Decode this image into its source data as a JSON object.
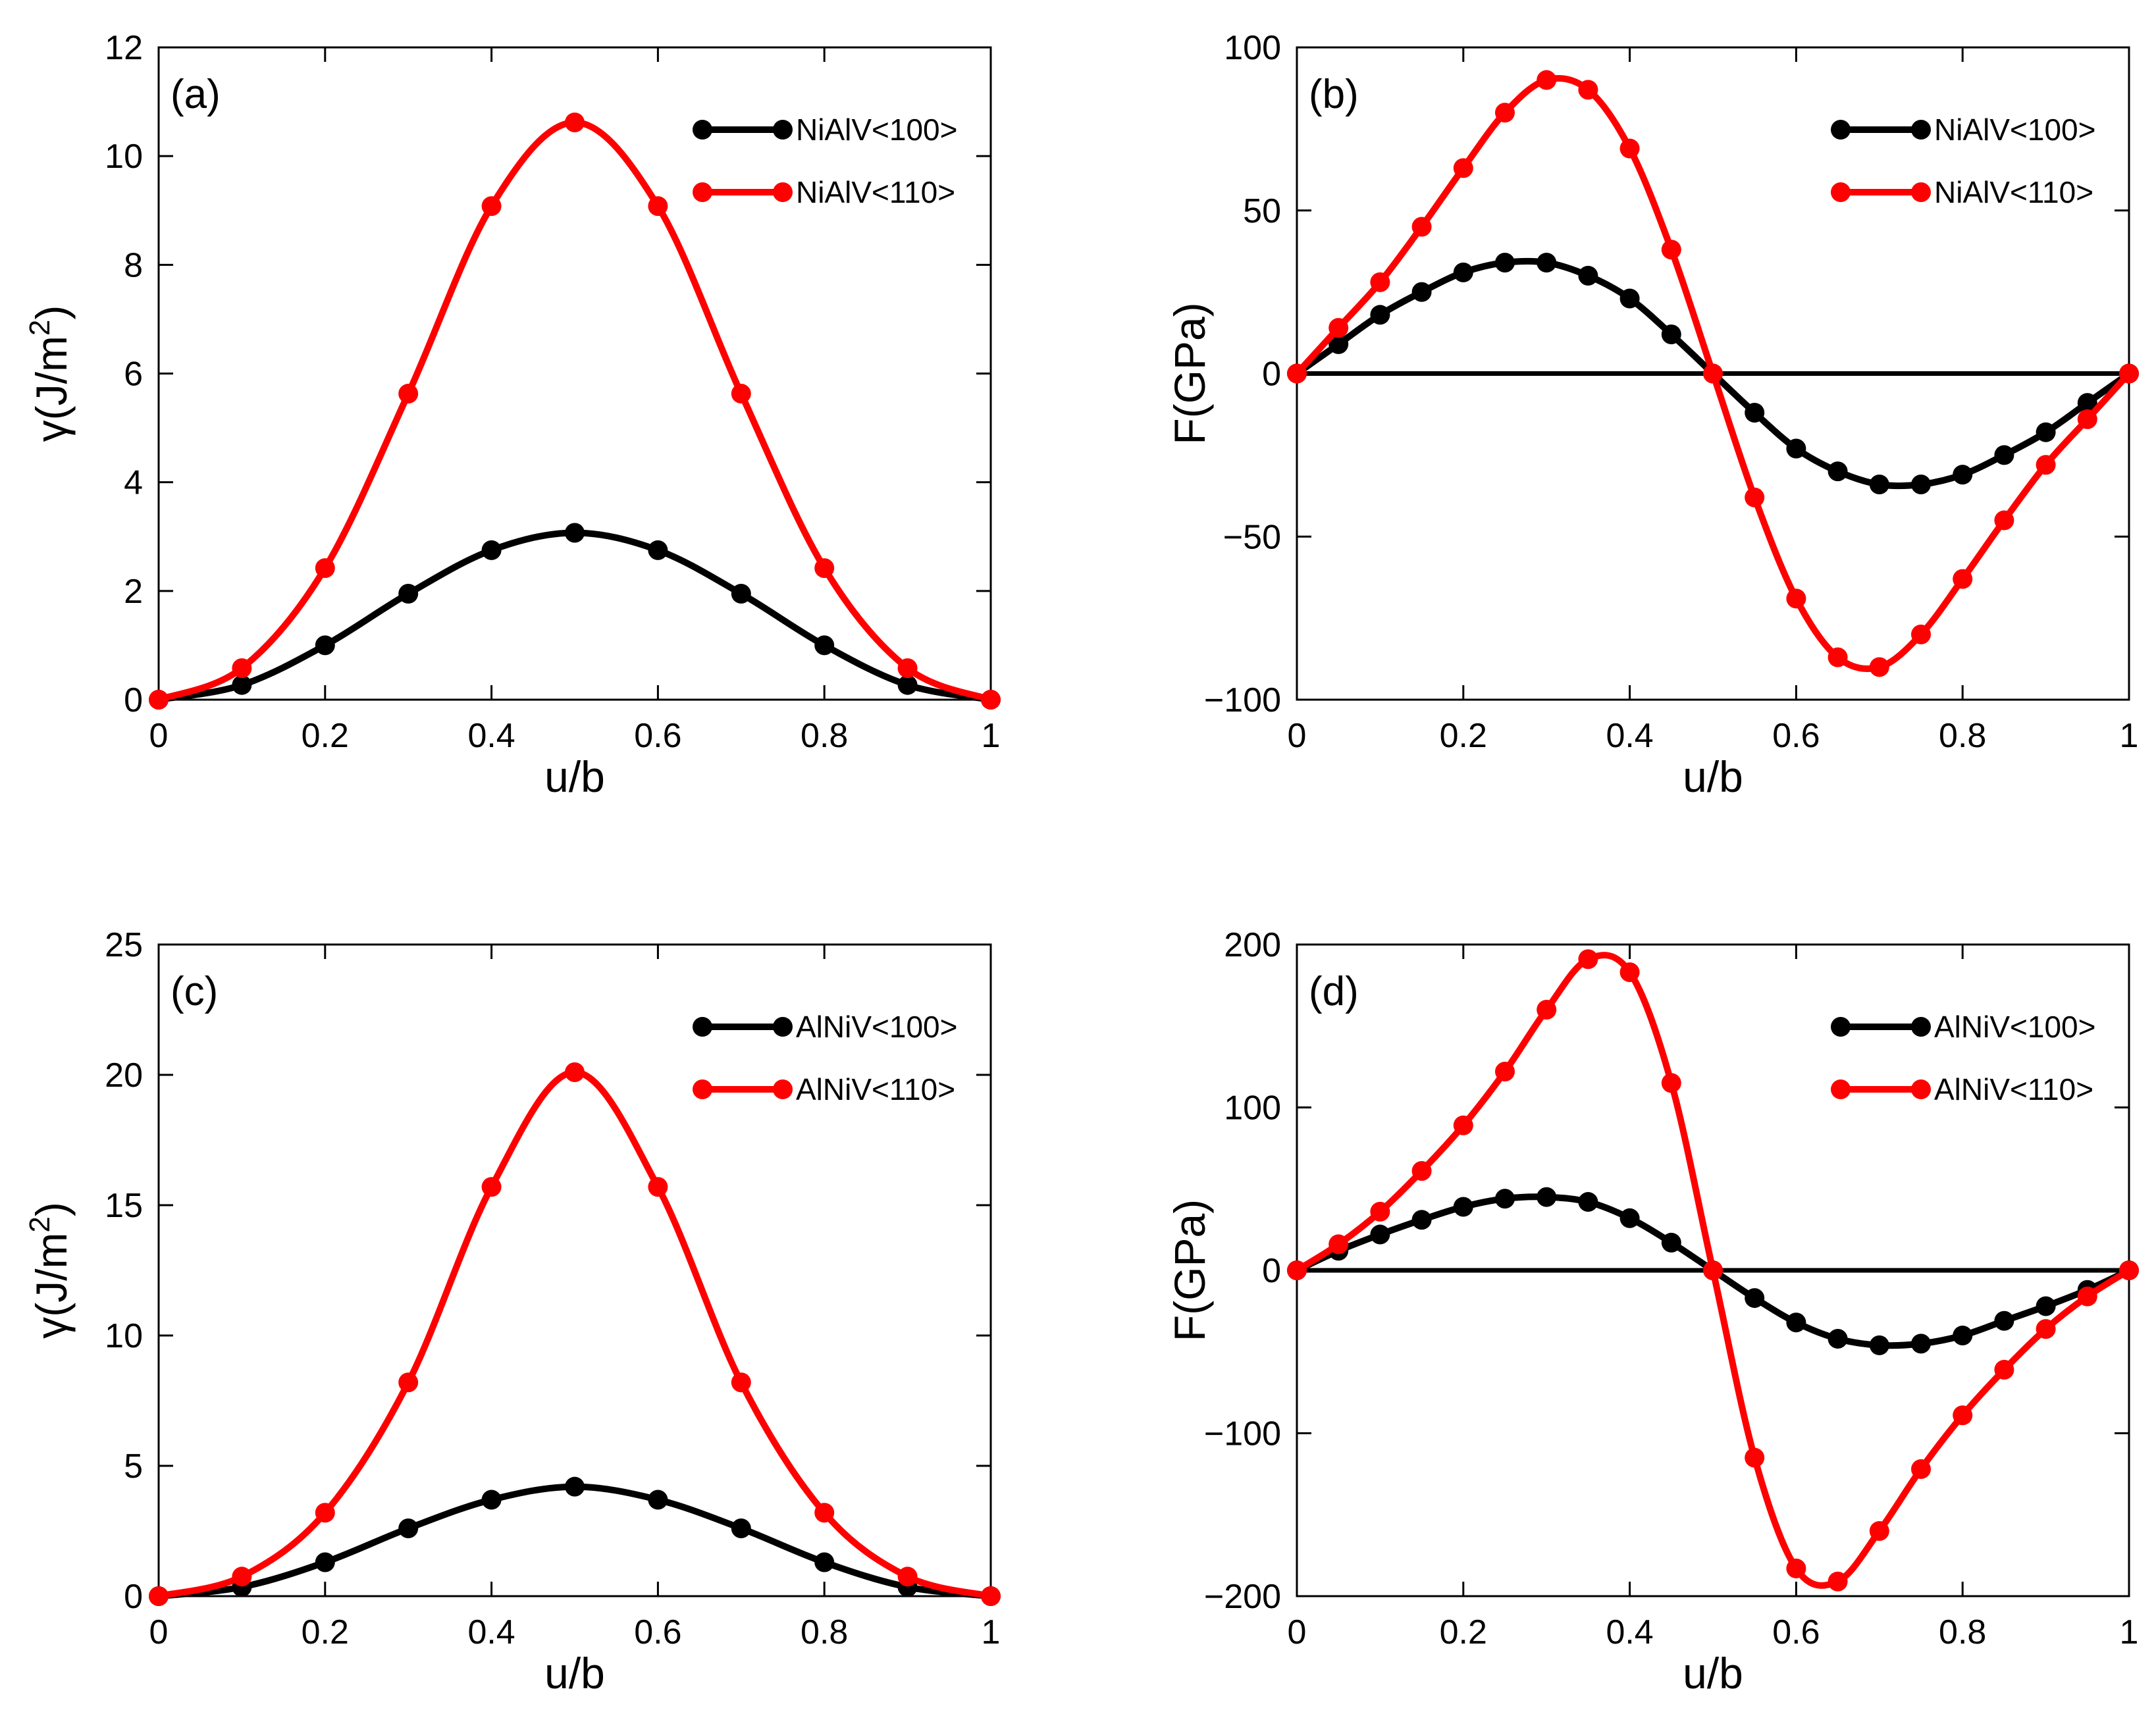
{
  "chart_data": [
    {
      "type": "line",
      "panel_label": "(a)",
      "xlabel": "u/b",
      "ylabel": "γ(J/m²)",
      "ylabel_parts": {
        "base": "γ(J/m",
        "sup": "2",
        "close": ")"
      },
      "xlim": [
        0,
        1
      ],
      "ylim": [
        0,
        12
      ],
      "xticks": [
        0,
        0.2,
        0.4,
        0.6,
        0.8,
        1
      ],
      "xtick_labels": [
        "0",
        "0.2",
        "0.4",
        "0.6",
        "0.8",
        "1"
      ],
      "yticks": [
        0,
        2,
        4,
        6,
        8,
        10,
        12
      ],
      "ytick_labels": [
        "0",
        "2",
        "4",
        "6",
        "8",
        "10",
        "12"
      ],
      "legend_position": "top-right",
      "series": [
        {
          "name": "NiAlV<100>",
          "color": "#000000",
          "x": [
            0,
            0.1,
            0.2,
            0.3,
            0.4,
            0.5,
            0.6,
            0.7,
            0.8,
            0.9,
            1
          ],
          "y": [
            0,
            0.27,
            1.0,
            1.95,
            2.75,
            3.07,
            2.75,
            1.95,
            1.0,
            0.27,
            0
          ]
        },
        {
          "name": "NiAlV<110>",
          "color": "#ff0000",
          "x": [
            0,
            0.1,
            0.2,
            0.3,
            0.4,
            0.5,
            0.6,
            0.7,
            0.8,
            0.9,
            1
          ],
          "y": [
            0,
            0.58,
            2.42,
            5.63,
            9.08,
            10.62,
            9.08,
            5.63,
            2.42,
            0.58,
            0
          ]
        }
      ]
    },
    {
      "type": "line",
      "panel_label": "(b)",
      "xlabel": "u/b",
      "ylabel": "F(GPa)",
      "xlim": [
        0,
        1
      ],
      "ylim": [
        -100,
        100
      ],
      "xticks": [
        0,
        0.2,
        0.4,
        0.6,
        0.8,
        1
      ],
      "xtick_labels": [
        "0",
        "0.2",
        "0.4",
        "0.6",
        "0.8",
        "1"
      ],
      "yticks": [
        -100,
        -50,
        0,
        50,
        100
      ],
      "ytick_labels": [
        "−100",
        "−50",
        "0",
        "50",
        "100"
      ],
      "legend_position": "top-right",
      "zero_line": true,
      "series": [
        {
          "name": "NiAlV<100>",
          "color": "#000000",
          "x": [
            0,
            0.05,
            0.1,
            0.15,
            0.2,
            0.25,
            0.3,
            0.35,
            0.4,
            0.45,
            0.5,
            0.55,
            0.6,
            0.65,
            0.7,
            0.75,
            0.8,
            0.85,
            0.9,
            0.95,
            1
          ],
          "y": [
            0,
            9,
            18,
            25,
            31,
            34,
            34,
            30,
            23,
            12,
            0,
            -12,
            -23,
            -30,
            -34,
            -34,
            -31,
            -25,
            -18,
            -9,
            0
          ]
        },
        {
          "name": "NiAlV<110>",
          "color": "#ff0000",
          "x": [
            0,
            0.05,
            0.1,
            0.15,
            0.2,
            0.25,
            0.3,
            0.35,
            0.4,
            0.45,
            0.5,
            0.55,
            0.6,
            0.65,
            0.7,
            0.75,
            0.8,
            0.85,
            0.9,
            0.95,
            1
          ],
          "y": [
            0,
            14,
            28,
            45,
            63,
            80,
            90,
            87,
            69,
            38,
            0,
            -38,
            -69,
            -87,
            -90,
            -80,
            -63,
            -45,
            -28,
            -14,
            0
          ]
        }
      ]
    },
    {
      "type": "line",
      "panel_label": "(c)",
      "xlabel": "u/b",
      "ylabel": "γ(J/m²)",
      "ylabel_parts": {
        "base": "γ(J/m",
        "sup": "2",
        "close": ")"
      },
      "xlim": [
        0,
        1
      ],
      "ylim": [
        0,
        25
      ],
      "xticks": [
        0,
        0.2,
        0.4,
        0.6,
        0.8,
        1
      ],
      "xtick_labels": [
        "0",
        "0.2",
        "0.4",
        "0.6",
        "0.8",
        "1"
      ],
      "yticks": [
        0,
        5,
        10,
        15,
        20,
        25
      ],
      "ytick_labels": [
        "0",
        "5",
        "10",
        "15",
        "20",
        "25"
      ],
      "legend_position": "top-right",
      "series": [
        {
          "name": "AlNiV<100>",
          "color": "#000000",
          "x": [
            0,
            0.1,
            0.2,
            0.3,
            0.4,
            0.5,
            0.6,
            0.7,
            0.8,
            0.9,
            1
          ],
          "y": [
            0,
            0.35,
            1.3,
            2.6,
            3.7,
            4.2,
            3.7,
            2.6,
            1.3,
            0.35,
            0
          ]
        },
        {
          "name": "AlNiV<110>",
          "color": "#ff0000",
          "x": [
            0,
            0.1,
            0.2,
            0.3,
            0.4,
            0.5,
            0.6,
            0.7,
            0.8,
            0.9,
            1
          ],
          "y": [
            0,
            0.75,
            3.2,
            8.2,
            15.7,
            20.1,
            15.7,
            8.2,
            3.2,
            0.75,
            0
          ]
        }
      ]
    },
    {
      "type": "line",
      "panel_label": "(d)",
      "xlabel": "u/b",
      "ylabel": "F(GPa)",
      "xlim": [
        0,
        1
      ],
      "ylim": [
        -200,
        200
      ],
      "xticks": [
        0,
        0.2,
        0.4,
        0.6,
        0.8,
        1
      ],
      "xtick_labels": [
        "0",
        "0.2",
        "0.4",
        "0.6",
        "0.8",
        "1"
      ],
      "yticks": [
        -200,
        -100,
        0,
        100,
        200
      ],
      "ytick_labels": [
        "−200",
        "−100",
        "0",
        "100",
        "200"
      ],
      "legend_position": "top-right",
      "zero_line": true,
      "series": [
        {
          "name": "AlNiV<100>",
          "color": "#000000",
          "x": [
            0,
            0.05,
            0.1,
            0.15,
            0.2,
            0.25,
            0.3,
            0.35,
            0.4,
            0.45,
            0.5,
            0.55,
            0.6,
            0.65,
            0.7,
            0.75,
            0.8,
            0.85,
            0.9,
            0.95,
            1
          ],
          "y": [
            0,
            12,
            22,
            31,
            39,
            44,
            45,
            42,
            32,
            17,
            0,
            -17,
            -32,
            -42,
            -46,
            -45,
            -40,
            -31,
            -22,
            -12,
            0
          ]
        },
        {
          "name": "AlNiV<110>",
          "color": "#ff0000",
          "x": [
            0,
            0.05,
            0.1,
            0.15,
            0.2,
            0.25,
            0.3,
            0.35,
            0.4,
            0.45,
            0.5,
            0.55,
            0.6,
            0.65,
            0.7,
            0.75,
            0.8,
            0.85,
            0.9,
            0.95,
            1
          ],
          "y": [
            0,
            16,
            36,
            61,
            89,
            122,
            160,
            191,
            183,
            115,
            0,
            -115,
            -183,
            -191,
            -160,
            -122,
            -89,
            -61,
            -36,
            -16,
            0
          ]
        }
      ]
    }
  ]
}
